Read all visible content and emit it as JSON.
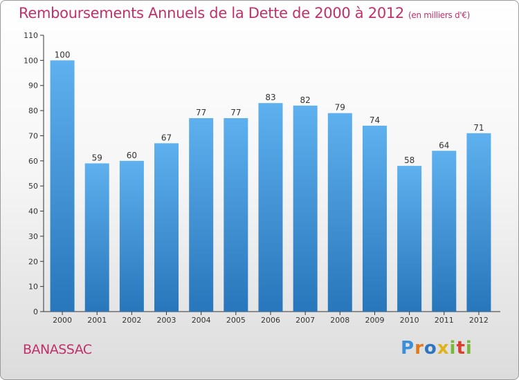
{
  "chart_data": {
    "type": "bar",
    "title": "Remboursements Annuels de la Dette de 2000 à 2012",
    "unit": "(en milliers d'€)",
    "categories": [
      "2000",
      "2001",
      "2002",
      "2003",
      "2004",
      "2005",
      "2006",
      "2007",
      "2008",
      "2009",
      "2010",
      "2011",
      "2012"
    ],
    "values": [
      100,
      59,
      60,
      67,
      77,
      77,
      83,
      82,
      79,
      74,
      58,
      64,
      71
    ],
    "ylim": [
      0,
      110
    ],
    "yticks": [
      0,
      10,
      20,
      30,
      40,
      50,
      60,
      70,
      80,
      90,
      100,
      110
    ],
    "grid": false,
    "bar_color": "#5aaae8",
    "bar_color_dark": "#2a7ac0"
  },
  "place": "BANASSAC",
  "logo": {
    "text": "Proxiti",
    "letters": [
      "P",
      "r",
      "o",
      "x",
      "i",
      "t",
      "i"
    ]
  }
}
